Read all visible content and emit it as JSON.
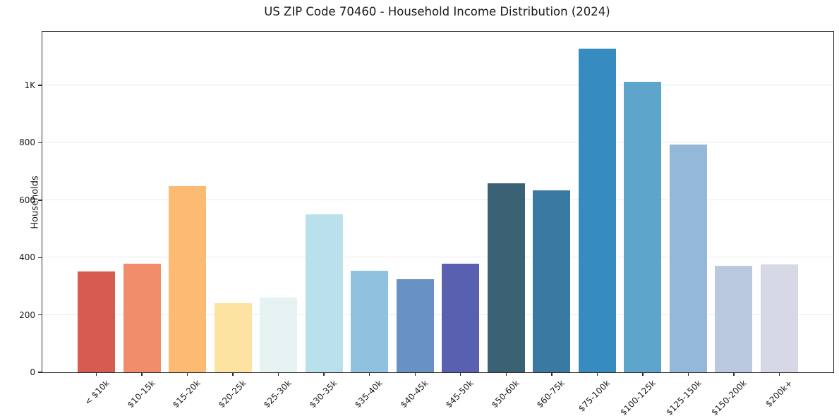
{
  "chart_data": {
    "type": "bar",
    "title": "US ZIP Code 70460 - Household Income Distribution (2024)",
    "xlabel": "",
    "ylabel": "Households",
    "categories": [
      "< $10k",
      "$10-15k",
      "$15-20k",
      "$20-25k",
      "$25-30k",
      "$30-35k",
      "$35-40k",
      "$40-45k",
      "$45-50k",
      "$50-60k",
      "$60-75k",
      "$75-100k",
      "$100-125k",
      "$125-150k",
      "$150-200k",
      "$200k+"
    ],
    "values": [
      352,
      378,
      648,
      241,
      260,
      550,
      354,
      324,
      378,
      658,
      634,
      1128,
      1013,
      793,
      371,
      377
    ],
    "bar_colors": [
      "#d65c51",
      "#f28d6c",
      "#fcba72",
      "#fde3a1",
      "#e6f3f2",
      "#b9e0eb",
      "#8fc2de",
      "#6891c4",
      "#5a60b0",
      "#3a6174",
      "#3979a2",
      "#368cbf",
      "#5ea5cb",
      "#93b8d8",
      "#bac9e0",
      "#d7d8e6"
    ],
    "ylim": [
      0,
      1187
    ],
    "yticks": [
      {
        "value": 0,
        "label": "0"
      },
      {
        "value": 200,
        "label": "200"
      },
      {
        "value": 400,
        "label": "400"
      },
      {
        "value": 600,
        "label": "600"
      },
      {
        "value": 800,
        "label": "800"
      },
      {
        "value": 1000,
        "label": "1K"
      }
    ],
    "grid": "horizontal-only",
    "gridline_color": "#e9e9ed",
    "axis_color": "#2b2b2b",
    "text_color": "#1a1a1a",
    "background": "#ffffff",
    "legend": "none"
  }
}
